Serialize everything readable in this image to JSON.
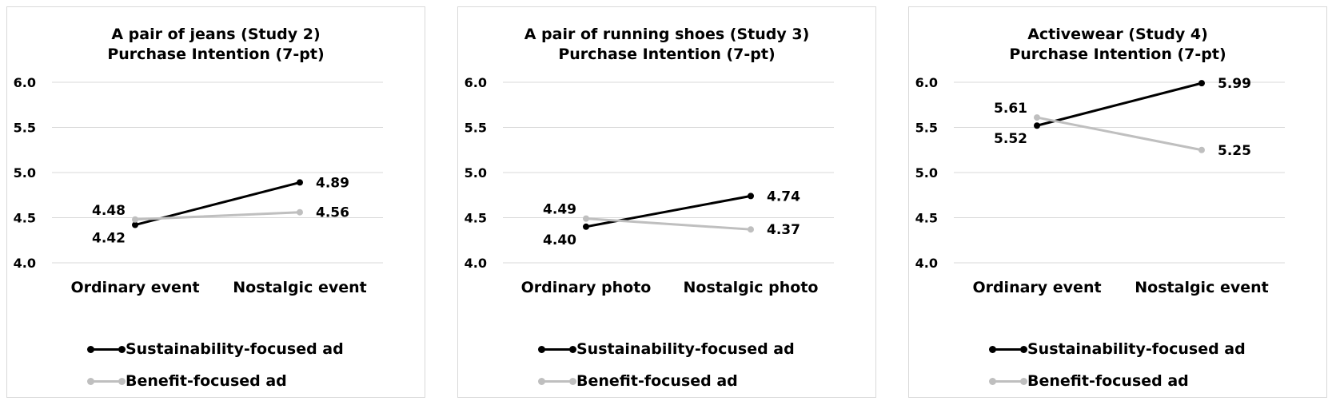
{
  "chart_data": [
    {
      "type": "line",
      "title": "A pair of jeans (Study 2)",
      "subtitle": "Purchase Intention (7-pt)",
      "categories": [
        "Ordinary event",
        "Nostalgic event"
      ],
      "ylim": [
        4.0,
        6.0
      ],
      "yticks": [
        "6.0",
        "5.5",
        "5.0",
        "4.5",
        "4.0"
      ],
      "grid": true,
      "legend": "bottom",
      "series": [
        {
          "name": "Sustainability-focused ad",
          "color": "#000000",
          "values": [
            4.42,
            4.89
          ],
          "labels": [
            "4.42",
            "4.89"
          ]
        },
        {
          "name": "Benefit-focused ad",
          "color": "#bfbfbf",
          "values": [
            4.48,
            4.56
          ],
          "labels": [
            "4.48",
            "4.56"
          ]
        }
      ]
    },
    {
      "type": "line",
      "title": "A pair of running shoes (Study 3)",
      "subtitle": "Purchase Intention (7-pt)",
      "categories": [
        "Ordinary photo",
        "Nostalgic photo"
      ],
      "ylim": [
        4.0,
        6.0
      ],
      "yticks": [
        "6.0",
        "5.5",
        "5.0",
        "4.5",
        "4.0"
      ],
      "grid": true,
      "legend": "bottom",
      "series": [
        {
          "name": "Sustainability-focused ad",
          "color": "#000000",
          "values": [
            4.4,
            4.74
          ],
          "labels": [
            "4.40",
            "4.74"
          ]
        },
        {
          "name": "Benefit-focused ad",
          "color": "#bfbfbf",
          "values": [
            4.49,
            4.37
          ],
          "labels": [
            "4.49",
            "4.37"
          ]
        }
      ]
    },
    {
      "type": "line",
      "title": "Activewear (Study 4)",
      "subtitle": "Purchase Intention (7-pt)",
      "categories": [
        "Ordinary event",
        "Nostalgic event"
      ],
      "ylim": [
        4.0,
        6.0
      ],
      "yticks": [
        "6.0",
        "5.5",
        "5.0",
        "4.5",
        "4.0"
      ],
      "grid": true,
      "legend": "bottom",
      "series": [
        {
          "name": "Sustainability-focused ad",
          "color": "#000000",
          "values": [
            5.52,
            5.99
          ],
          "labels": [
            "5.52",
            "5.99"
          ]
        },
        {
          "name": "Benefit-focused ad",
          "color": "#bfbfbf",
          "values": [
            5.61,
            5.25
          ],
          "labels": [
            "5.61",
            "5.25"
          ]
        }
      ]
    }
  ]
}
